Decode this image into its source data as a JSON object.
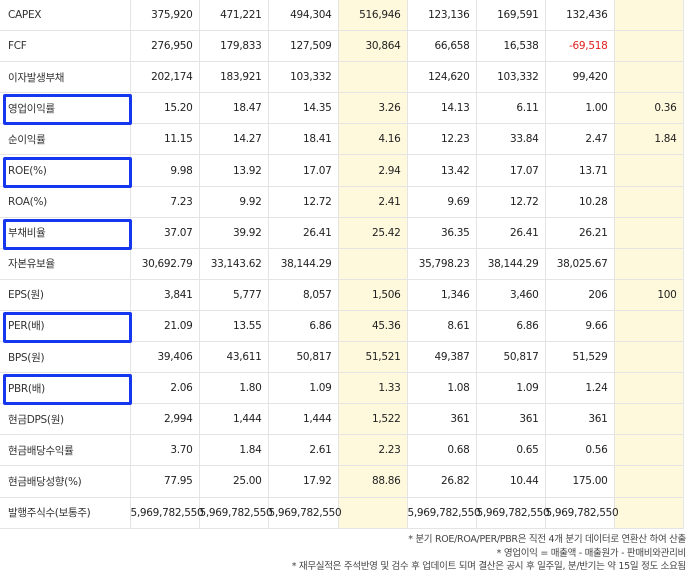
{
  "table": {
    "rows": [
      [
        "CAPEX",
        "375,920",
        "471,221",
        "494,304",
        "516,946",
        "123,136",
        "169,591",
        "132,436",
        null
      ],
      [
        "FCF",
        "276,950",
        "179,833",
        "127,509",
        "30,864",
        "66,658",
        "16,538",
        "-69,518",
        null
      ],
      [
        "이자발생부채",
        "202,174",
        "183,921",
        "103,332",
        null,
        "124,620",
        "103,332",
        "99,420",
        null
      ],
      [
        "영업이익률",
        "15.20",
        "18.47",
        "14.35",
        "3.26",
        "14.13",
        "6.11",
        "1.00",
        "0.36"
      ],
      [
        "순이익률",
        "11.15",
        "14.27",
        "18.41",
        "4.16",
        "12.23",
        "33.84",
        "2.47",
        "1.84"
      ],
      [
        "ROE(%)",
        "9.98",
        "13.92",
        "17.07",
        "2.94",
        "13.42",
        "17.07",
        "13.71",
        null
      ],
      [
        "ROA(%)",
        "7.23",
        "9.92",
        "12.72",
        "2.41",
        "9.69",
        "12.72",
        "10.28",
        null
      ],
      [
        "부채비율",
        "37.07",
        "39.92",
        "26.41",
        "25.42",
        "36.35",
        "26.41",
        "26.21",
        null
      ],
      [
        "자본유보율",
        "30,692.79",
        "33,143.62",
        "38,144.29",
        null,
        "35,798.23",
        "38,144.29",
        "38,025.67",
        null
      ],
      [
        "EPS(원)",
        "3,841",
        "5,777",
        "8,057",
        "1,506",
        "1,346",
        "3,460",
        "206",
        "100"
      ],
      [
        "PER(배)",
        "21.09",
        "13.55",
        "6.86",
        "45.36",
        "8.61",
        "6.86",
        "9.66",
        null
      ],
      [
        "BPS(원)",
        "39,406",
        "43,611",
        "50,817",
        "51,521",
        "49,387",
        "50,817",
        "51,529",
        null
      ],
      [
        "PBR(배)",
        "2.06",
        "1.80",
        "1.09",
        "1.33",
        "1.08",
        "1.09",
        "1.24",
        null
      ],
      [
        "현금DPS(원)",
        "2,994",
        "1,444",
        "1,444",
        "1,522",
        "361",
        "361",
        "361",
        null
      ],
      [
        "현금배당수익률",
        "3.70",
        "1.84",
        "2.61",
        "2.23",
        "0.68",
        "0.65",
        "0.56",
        null
      ],
      [
        "현금배당성향(%)",
        "77.95",
        "25.00",
        "17.92",
        "88.86",
        "26.82",
        "10.44",
        "175.00",
        null
      ],
      [
        "발행주식수(보통주)",
        "5,969,782,550",
        "5,969,782,550",
        "5,969,782,550",
        null,
        "5,969,782,550",
        "5,969,782,550",
        "5,969,782,550",
        null
      ]
    ]
  },
  "footnotes": [
    "* 분기 ROE/ROA/PER/PBR은 직전 4개 분기 데이터로 연환산 하여 산출",
    "* 영업이익 = 매출액 - 매출원가 - 판매비와관리비",
    "* 재무실적은 주석반영 및 검수 후 업데이트 되며 결산은 공시 후 일주일, 분/반기는 약 15일 정도 소요됨"
  ]
}
